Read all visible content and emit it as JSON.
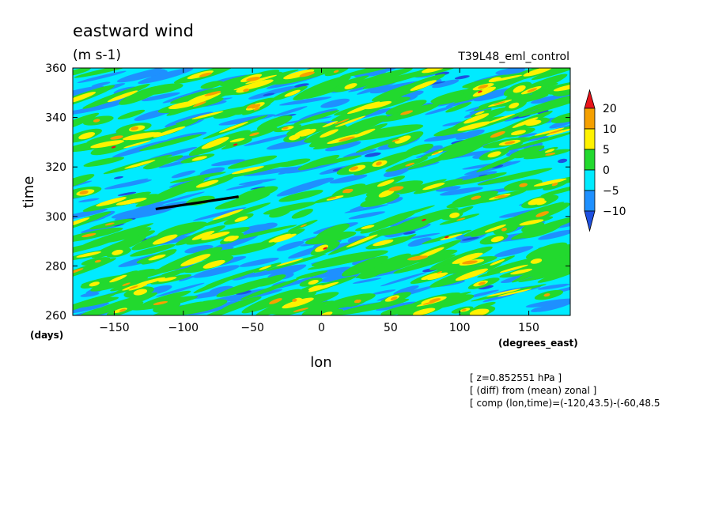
{
  "chart_data": {
    "type": "heatmap",
    "title": "eastward wind",
    "units": "(m s-1)",
    "dataset": "T39L48_eml_control",
    "xlabel": "lon",
    "ylabel": "time",
    "x_units": "(degrees_east)",
    "y_units": "(days)",
    "xlim": [
      -180,
      180
    ],
    "ylim": [
      260,
      360
    ],
    "x_ticks": [
      -150,
      -100,
      -50,
      0,
      50,
      100,
      150
    ],
    "y_ticks": [
      260,
      280,
      300,
      320,
      340,
      360
    ],
    "colorbar": {
      "levels": [
        "20",
        "10",
        "5",
        "0",
        "-5",
        "-10"
      ],
      "colors": [
        "#e8141a",
        "#f5a000",
        "#fff200",
        "#22d92e",
        "#00ebff",
        "#1e90ff",
        "#1e50e0"
      ]
    },
    "composite_line": {
      "x": [
        -120,
        -60
      ],
      "y": [
        303,
        308
      ]
    },
    "notes": [
      "[ z=0.852551 hPa ]",
      "[ (diff) from (mean) zonal ]",
      "[ comp (lon,time)=(-120,43.5)-(-60,48.5"
    ]
  }
}
